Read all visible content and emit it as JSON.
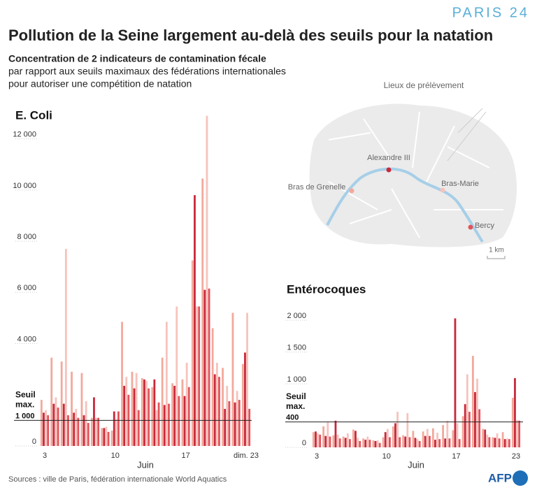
{
  "header": {
    "logo": "PARIS 24",
    "title": "Pollution de la Seine largement au-delà des seuils pour la natation",
    "subtitle": [
      "Concentration de 2 indicateurs de contamination fécale",
      "par rapport aux seuils maximaux des fédérations internationales",
      "pour autoriser une compétition de natation"
    ]
  },
  "map": {
    "title": "Lieux de prélèvement",
    "scale_label": "1 km"
  },
  "chart_data": [
    {
      "type": "bar",
      "title": "E. Coli",
      "x_label": "Juin",
      "categories": [
        "3",
        null,
        null,
        null,
        null,
        null,
        null,
        "10",
        null,
        null,
        null,
        null,
        null,
        null,
        "17",
        null,
        null,
        null,
        null,
        null,
        "dim. 23"
      ],
      "series": [
        {
          "name": "Bras de Grenelle",
          "color": "#f2a99b",
          "values": [
            1800,
            3450,
            3300,
            2900,
            2850,
            1100,
            700,
            600,
            4850,
            2900,
            2650,
            2300,
            3450,
            2450,
            2600,
            7250,
            10450,
            4600,
            3050,
            5200,
            3200
          ]
        },
        {
          "name": "Alexandre III",
          "color": "#c9283b",
          "values": [
            1300,
            1650,
            1650,
            1300,
            1200,
            1900,
            700,
            1350,
            2350,
            2250,
            2600,
            2600,
            1600,
            2350,
            1950,
            9800,
            6100,
            2800,
            1450,
            1700,
            3650
          ]
        },
        {
          "name": "Bras-Marie",
          "color": "#f6c3bd",
          "values": [
            1400,
            1900,
            7700,
            1450,
            1750,
            1100,
            750,
            1050,
            2700,
            2850,
            2550,
            1400,
            4850,
            5450,
            3250,
            5450,
            12900,
            3250,
            2350,
            2150,
            5200
          ]
        },
        {
          "name": "Bercy",
          "color": "#e2535b",
          "values": [
            1200,
            1500,
            1200,
            1100,
            900,
            1100,
            550,
            1350,
            2000,
            1400,
            2250,
            1700,
            1650,
            1950,
            2300,
            5450,
            6150,
            2700,
            1750,
            1800,
            1450
          ]
        }
      ],
      "ylim": [
        0,
        13000
      ],
      "yticks": [
        0,
        {
          "value": 1000,
          "label": "1 000"
        },
        {
          "value": 4000,
          "label": "4 000"
        },
        {
          "value": 6000,
          "label": "6 000"
        },
        {
          "value": 8000,
          "label": "8 000"
        },
        {
          "value": 10000,
          "label": "10 000"
        },
        {
          "value": 12000,
          "label": "12 000"
        }
      ],
      "threshold": 1000,
      "threshold_label": [
        "Seuil",
        "max."
      ]
    },
    {
      "type": "bar",
      "title": "Entérocoques",
      "x_label": "Juin",
      "categories": [
        "3",
        null,
        null,
        null,
        null,
        null,
        null,
        "10",
        null,
        null,
        null,
        null,
        null,
        null,
        "17",
        null,
        null,
        null,
        null,
        null,
        "23"
      ],
      "series": [
        {
          "name": "Bras de Grenelle",
          "color": "#f2a99b",
          "values": [
            240,
            330,
            190,
            170,
            280,
            140,
            110,
            160,
            330,
            190,
            260,
            250,
            300,
            350,
            270,
            490,
            1440,
            290,
            160,
            240,
            780
          ]
        },
        {
          "name": "Alexandre III",
          "color": "#c9283b",
          "values": [
            250,
            180,
            420,
            150,
            260,
            120,
            100,
            240,
            380,
            170,
            150,
            180,
            120,
            140,
            2030,
            680,
            870,
            280,
            150,
            130,
            1090
          ]
        },
        {
          "name": "Bras-Marie",
          "color": "#f6c3bd",
          "values": [
            220,
            400,
            200,
            220,
            150,
            170,
            110,
            290,
            560,
            540,
            130,
            290,
            230,
            420,
            380,
            1150,
            1080,
            200,
            220,
            140,
            430
          ]
        },
        {
          "name": "Bercy",
          "color": "#e2535b",
          "values": [
            200,
            170,
            140,
            130,
            100,
            120,
            70,
            160,
            160,
            160,
            100,
            180,
            130,
            140,
            130,
            560,
            600,
            160,
            140,
            130,
            420
          ]
        }
      ],
      "ylim": [
        0,
        2200
      ],
      "yticks": [
        0,
        400,
        {
          "value": 1000,
          "label": "1 000"
        },
        {
          "value": 1500,
          "label": "1 500"
        },
        {
          "value": 2000,
          "label": "2 000"
        }
      ],
      "threshold": 400,
      "threshold_label": [
        "Seuil",
        "max."
      ]
    }
  ],
  "footer": {
    "source": "Sources : ville de Paris, fédération internationale World Aquatics",
    "logo": "AFP"
  }
}
